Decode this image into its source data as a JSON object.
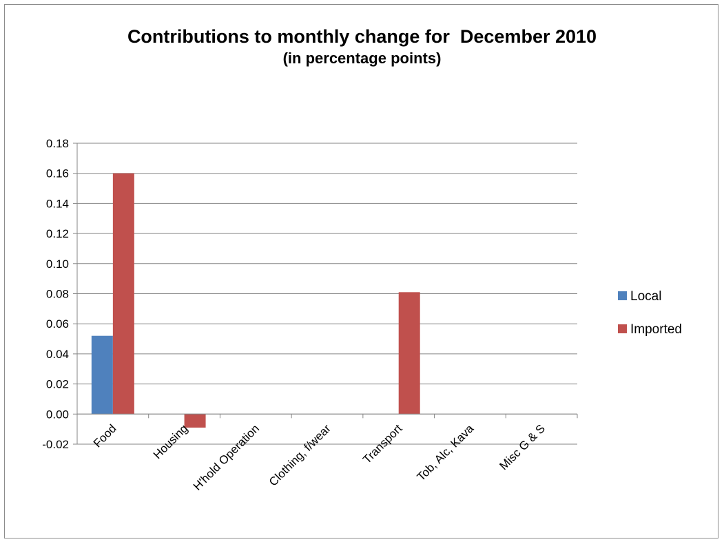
{
  "chart_data": {
    "type": "bar",
    "title": "Contributions to monthly change for  December 2010",
    "subtitle": "(in percentage points)",
    "categories": [
      "Food",
      "Housing",
      "H'hold Operation",
      "Clothing, f/wear",
      "Transport",
      "Tob, Alc, Kava",
      "Misc G & S"
    ],
    "series": [
      {
        "name": "Local",
        "color": "#4f81bd",
        "values": [
          0.052,
          0,
          0,
          0,
          0,
          0,
          0
        ]
      },
      {
        "name": "Imported",
        "color": "#c0504d",
        "values": [
          0.16,
          -0.009,
          0,
          0,
          0.081,
          0,
          0
        ]
      }
    ],
    "ylim": [
      -0.02,
      0.18
    ],
    "yticks": [
      "0.18",
      "0.16",
      "0.14",
      "0.12",
      "0.10",
      "0.08",
      "0.06",
      "0.04",
      "0.02",
      "0.00",
      "-0.02"
    ],
    "grid": true,
    "legend": "right"
  }
}
